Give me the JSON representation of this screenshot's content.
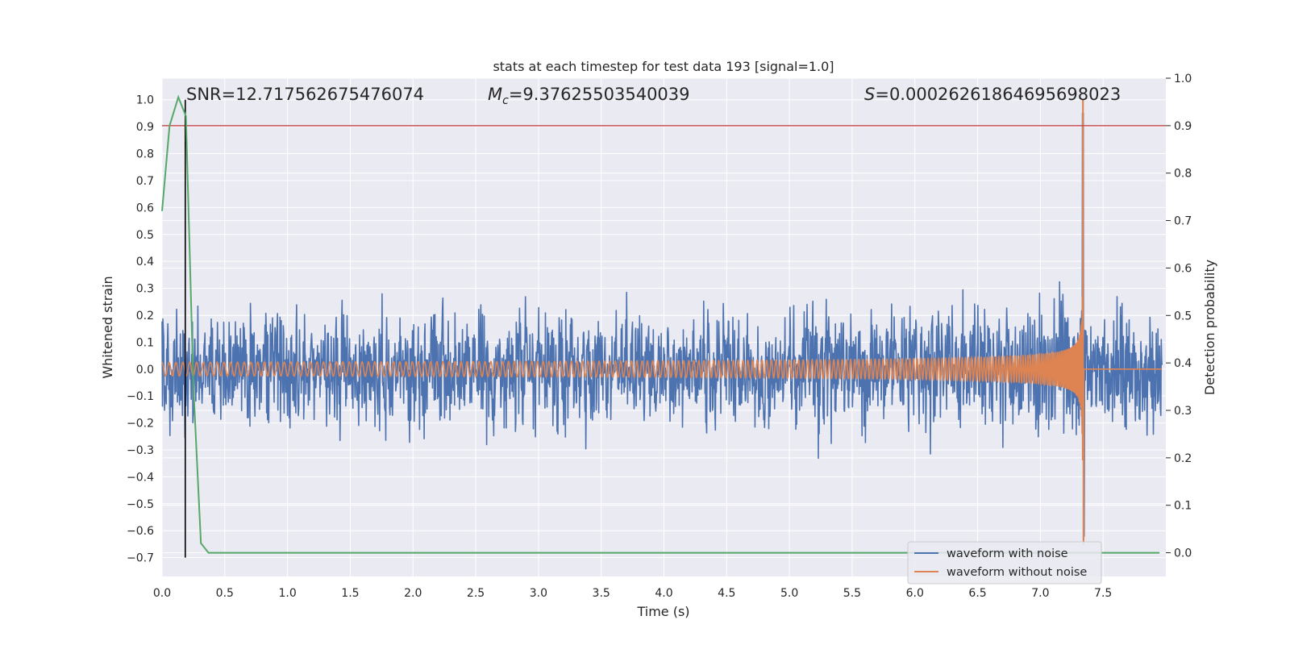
{
  "chart_data": {
    "type": "line",
    "title": "stats at each timestep for test data 193 [signal=1.0]",
    "xlabel": "Time (s)",
    "ylabel": "Whitened strain",
    "y2label": "Detection probability",
    "xlim": [
      0,
      8
    ],
    "ylim": [
      -0.77,
      1.08
    ],
    "y2lim": [
      -0.05,
      1.0
    ],
    "x_ticks": [
      0.0,
      0.5,
      1.0,
      1.5,
      2.0,
      2.5,
      3.0,
      3.5,
      4.0,
      4.5,
      5.0,
      5.5,
      6.0,
      6.5,
      7.0,
      7.5
    ],
    "y_ticks": [
      1.0,
      0.9,
      0.8,
      0.7,
      0.6,
      0.5,
      0.4,
      0.3,
      0.2,
      0.1,
      0.0,
      -0.1,
      -0.2,
      -0.3,
      -0.4,
      -0.5,
      -0.6,
      -0.7
    ],
    "y2_ticks": [
      1.0,
      0.9,
      0.8,
      0.7,
      0.6,
      0.5,
      0.4,
      0.3,
      0.2,
      0.1,
      0.0
    ],
    "grid": true,
    "legend_position": "lower-right",
    "colors": {
      "noisy": "#4c72b0",
      "clean": "#dd8452",
      "probability": "#55a868",
      "threshold": "#c44e52",
      "marker": "#000000",
      "plot_bg": "#eaeaf2",
      "grid": "#ffffff"
    },
    "series": [
      {
        "name": "waveform with noise",
        "description_values": {
          "noise_envelope": 0.22,
          "peak_time": 7.34,
          "peak_value": 0.95,
          "min_value": -0.62
        }
      },
      {
        "name": "waveform without noise",
        "values": {
          "start_amplitude": 0.025,
          "merger_time": 7.34,
          "peak_value": 1.0,
          "trough_value": -0.65,
          "start_frequency_hz": 18,
          "post_merger_value": 0.0
        }
      },
      {
        "axis": "right",
        "x": [
          0.0,
          0.06,
          0.13,
          0.19,
          0.25,
          0.31,
          0.37,
          0.45,
          7.95
        ],
        "y": [
          0.72,
          0.9,
          0.96,
          0.92,
          0.35,
          0.02,
          0.0,
          0.0,
          0.0
        ]
      }
    ],
    "threshold_line": {
      "axis": "right",
      "y": 0.9
    },
    "marker_line": {
      "x": 0.185,
      "y_from": -0.7,
      "y_to": 1.0
    }
  },
  "annotations": {
    "snr": "SNR=12.717562675476074",
    "mc_symbol": "M",
    "mc_subscript": "c",
    "mc_value": "=9.37625503540039",
    "s_symbol": "S",
    "s_value": "=0.00026261864695698023"
  }
}
